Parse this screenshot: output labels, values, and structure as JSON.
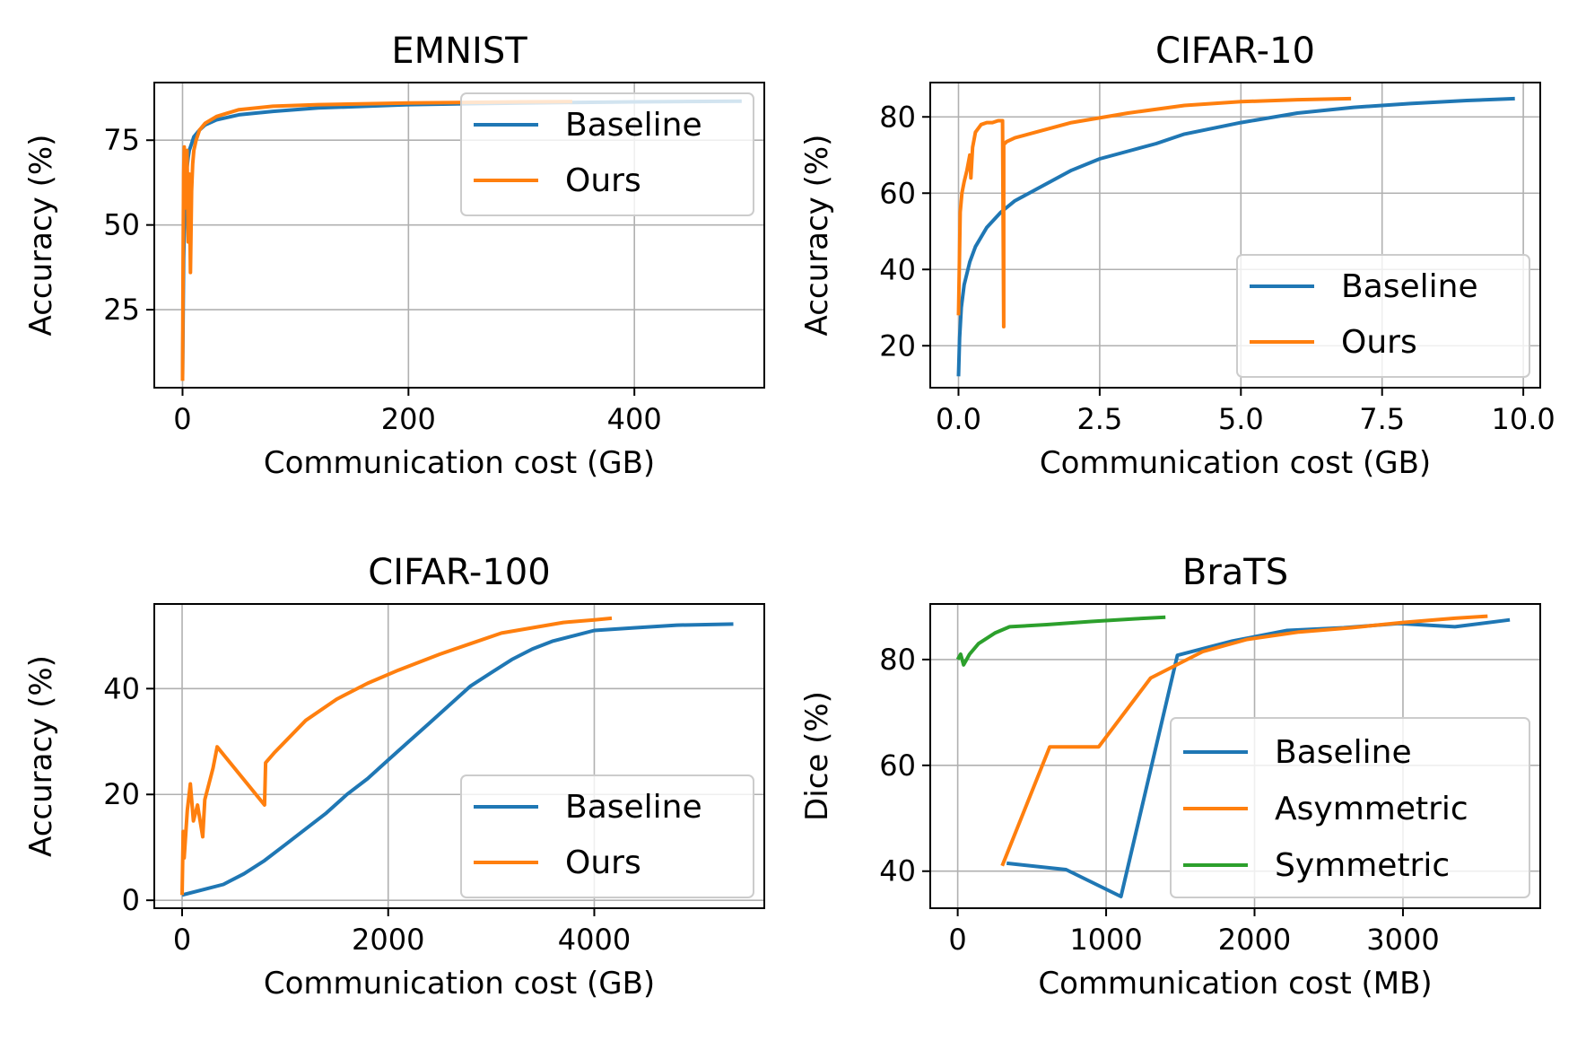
{
  "chart_data": [
    {
      "type": "line",
      "title": "EMNIST",
      "xlabel": "Communication cost (GB)",
      "ylabel": "Accuracy (%)",
      "xlim": [
        -25,
        515
      ],
      "ylim": [
        2,
        92
      ],
      "xticks": [
        0,
        200,
        400
      ],
      "xtick_labels": [
        "0",
        "200",
        "400"
      ],
      "yticks": [
        25,
        50,
        75
      ],
      "ytick_labels": [
        "25",
        "50",
        "75"
      ],
      "grid": true,
      "legend_position": "top-right",
      "series": [
        {
          "name": "Baseline",
          "color": "#1f77b4",
          "x": [
            0,
            0.5,
            1,
            2,
            3,
            4,
            5,
            6,
            8,
            10,
            15,
            20,
            30,
            50,
            80,
            120,
            200,
            300,
            400,
            495
          ],
          "y": [
            5,
            22,
            40,
            55,
            62,
            67,
            70,
            72,
            74,
            76,
            78,
            79.5,
            81,
            82.5,
            83.5,
            84.5,
            85.5,
            86,
            86.3,
            86.5
          ]
        },
        {
          "name": "Ours",
          "color": "#ff7f0e",
          "x": [
            0,
            0.5,
            1,
            1.5,
            2,
            3,
            4,
            5,
            6,
            7,
            8,
            9,
            10,
            12,
            15,
            20,
            30,
            50,
            80,
            120,
            200,
            300,
            345
          ],
          "y": [
            4,
            40,
            65,
            73,
            55,
            68,
            72,
            45,
            65,
            36,
            60,
            68,
            72,
            75,
            78,
            80,
            82,
            84,
            85,
            85.5,
            86,
            86.3,
            86.4
          ]
        }
      ]
    },
    {
      "type": "line",
      "title": "CIFAR-10",
      "xlabel": "Communication cost (GB)",
      "ylabel": "Accuracy (%)",
      "xlim": [
        -0.5,
        10.3
      ],
      "ylim": [
        9,
        89
      ],
      "xticks": [
        0,
        2.5,
        5,
        7.5,
        10
      ],
      "xtick_labels": [
        "0.0",
        "2.5",
        "5.0",
        "7.5",
        "10.0"
      ],
      "yticks": [
        20,
        40,
        60,
        80
      ],
      "ytick_labels": [
        "20",
        "40",
        "60",
        "80"
      ],
      "grid": true,
      "legend_position": "lower-right",
      "series": [
        {
          "name": "Baseline",
          "color": "#1f77b4",
          "x": [
            0,
            0.02,
            0.05,
            0.1,
            0.2,
            0.3,
            0.5,
            0.75,
            1,
            1.5,
            2,
            2.5,
            3,
            3.5,
            4,
            5,
            6,
            7,
            8,
            9,
            9.85
          ],
          "y": [
            12,
            22,
            30,
            36,
            42,
            46,
            51,
            55,
            58,
            62,
            66,
            69,
            71,
            73,
            75.5,
            78.5,
            81,
            82.5,
            83.5,
            84.3,
            84.8
          ]
        },
        {
          "name": "Ours",
          "color": "#ff7f0e",
          "x": [
            0,
            0.03,
            0.06,
            0.1,
            0.15,
            0.2,
            0.22,
            0.25,
            0.3,
            0.4,
            0.5,
            0.6,
            0.7,
            0.78,
            0.8,
            0.8,
            0.82,
            0.85,
            1,
            1.5,
            2,
            3,
            4,
            5,
            6,
            6.95
          ],
          "y": [
            28,
            55,
            60,
            63,
            66,
            70,
            64,
            72,
            76,
            78,
            78.5,
            78.5,
            79,
            79,
            25,
            73,
            73,
            73.5,
            74.5,
            76.5,
            78.5,
            81,
            83,
            84,
            84.5,
            84.8
          ]
        }
      ]
    },
    {
      "type": "line",
      "title": "CIFAR-100",
      "xlabel": "Communication cost (GB)",
      "ylabel": "Accuracy (%)",
      "xlim": [
        -270,
        5650
      ],
      "ylim": [
        -1.5,
        56
      ],
      "xticks": [
        0,
        2000,
        4000
      ],
      "xtick_labels": [
        "0",
        "2000",
        "4000"
      ],
      "yticks": [
        0,
        20,
        40
      ],
      "ytick_labels": [
        "0",
        "20",
        "40"
      ],
      "grid": true,
      "legend_position": "lower-right",
      "series": [
        {
          "name": "Baseline",
          "color": "#1f77b4",
          "x": [
            0,
            200,
            400,
            600,
            800,
            1000,
            1200,
            1400,
            1600,
            1800,
            2000,
            2200,
            2400,
            2600,
            2800,
            3000,
            3200,
            3400,
            3600,
            3800,
            4000,
            4400,
            4800,
            5350
          ],
          "y": [
            1,
            2,
            3,
            5,
            7.5,
            10.5,
            13.5,
            16.5,
            20,
            23,
            26.5,
            30,
            33.5,
            37,
            40.5,
            43,
            45.5,
            47.5,
            49,
            50,
            51,
            51.5,
            52,
            52.2
          ]
        },
        {
          "name": "Ours",
          "color": "#ff7f0e",
          "x": [
            0,
            10,
            20,
            50,
            80,
            110,
            150,
            200,
            220,
            260,
            300,
            340,
            800,
            810,
            900,
            1000,
            1200,
            1500,
            1800,
            2100,
            2500,
            2800,
            3100,
            3400,
            3700,
            4000,
            4170
          ],
          "y": [
            1,
            13,
            8,
            17,
            22,
            15,
            18,
            12,
            19,
            22,
            25,
            29,
            18,
            26,
            28,
            30,
            34,
            38,
            41,
            43.5,
            46.5,
            48.5,
            50.5,
            51.5,
            52.5,
            53,
            53.3
          ]
        }
      ]
    },
    {
      "type": "line",
      "title": "BraTS",
      "xlabel": "Communication cost (MB)",
      "ylabel": "Dice (%)",
      "xlim": [
        -185,
        3925
      ],
      "ylim": [
        33,
        90.5
      ],
      "xticks": [
        0,
        1000,
        2000,
        3000
      ],
      "xtick_labels": [
        "0",
        "1000",
        "2000",
        "3000"
      ],
      "yticks": [
        40,
        60,
        80
      ],
      "ytick_labels": [
        "40",
        "60",
        "80"
      ],
      "grid": true,
      "legend_position": "lower-right",
      "series": [
        {
          "name": "Baseline",
          "color": "#1f77b4",
          "x": [
            330,
            730,
            1100,
            1480,
            1850,
            2220,
            2600,
            2970,
            3350,
            3720
          ],
          "y": [
            41.5,
            40.3,
            35.2,
            80.8,
            83.5,
            85.5,
            86,
            86.8,
            86.2,
            87.5
          ]
        },
        {
          "name": "Asymmetric",
          "color": "#ff7f0e",
          "x": [
            300,
            620,
            950,
            1300,
            1650,
            1950,
            2300,
            2650,
            3000,
            3350,
            3570
          ],
          "y": [
            41,
            63.5,
            63.5,
            76.5,
            81.5,
            83.8,
            85.2,
            86,
            87,
            87.8,
            88.2
          ]
        },
        {
          "name": "Symmetric",
          "color": "#2ca02c",
          "x": [
            0,
            20,
            40,
            80,
            140,
            250,
            350,
            600,
            900,
            1200,
            1400
          ],
          "y": [
            80,
            81,
            79,
            81,
            83,
            85,
            86.2,
            86.6,
            87.2,
            87.7,
            88
          ]
        }
      ]
    }
  ]
}
